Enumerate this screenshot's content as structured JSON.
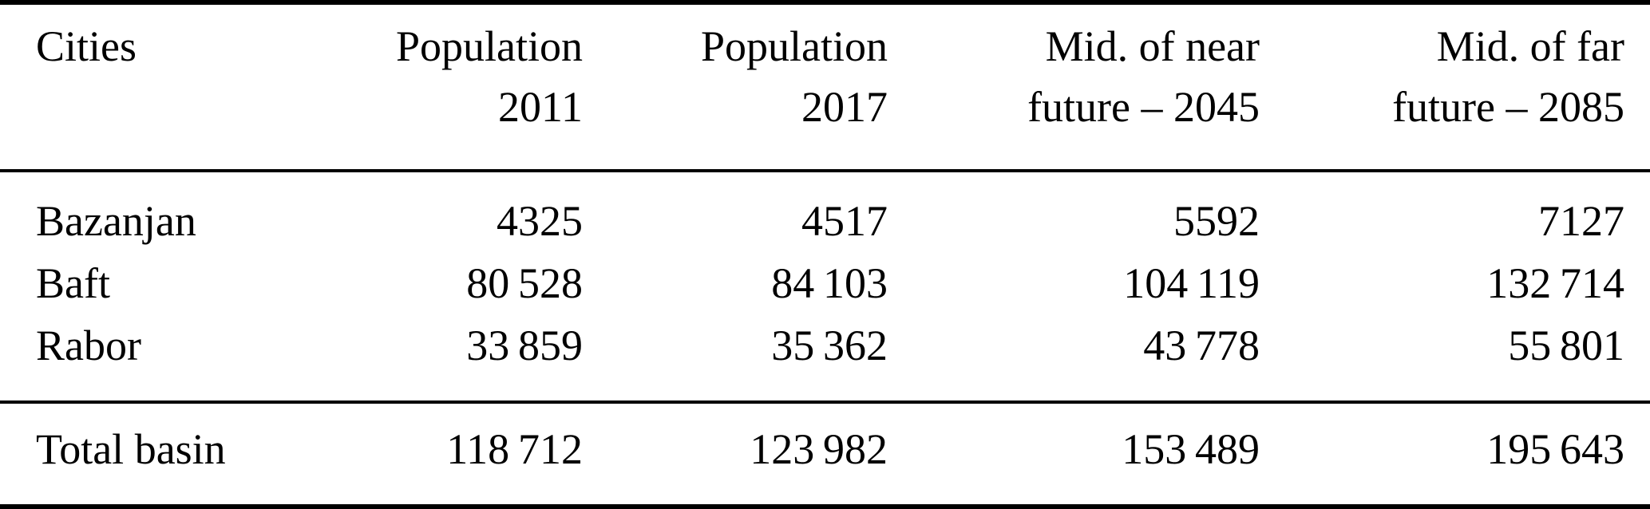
{
  "table": {
    "headers": [
      {
        "l1": "Cities",
        "l2": ""
      },
      {
        "l1": "Population",
        "l2": "2011"
      },
      {
        "l1": "Population",
        "l2": "2017"
      },
      {
        "l1": "Mid. of near",
        "l2": "future – 2045"
      },
      {
        "l1": "Mid. of far",
        "l2": "future – 2085"
      }
    ],
    "rows": [
      {
        "cells": [
          "Bazanjan",
          "4325",
          "4517",
          "5592",
          "7127"
        ]
      },
      {
        "cells": [
          "Baft",
          "80 528",
          "84 103",
          "104 119",
          "132 714"
        ]
      },
      {
        "cells": [
          "Rabor",
          "33 859",
          "35 362",
          "43 778",
          "55 801"
        ]
      }
    ],
    "total_row": {
      "cells": [
        "Total basin",
        "118 712",
        "123 982",
        "153 489",
        "195 643"
      ]
    }
  }
}
